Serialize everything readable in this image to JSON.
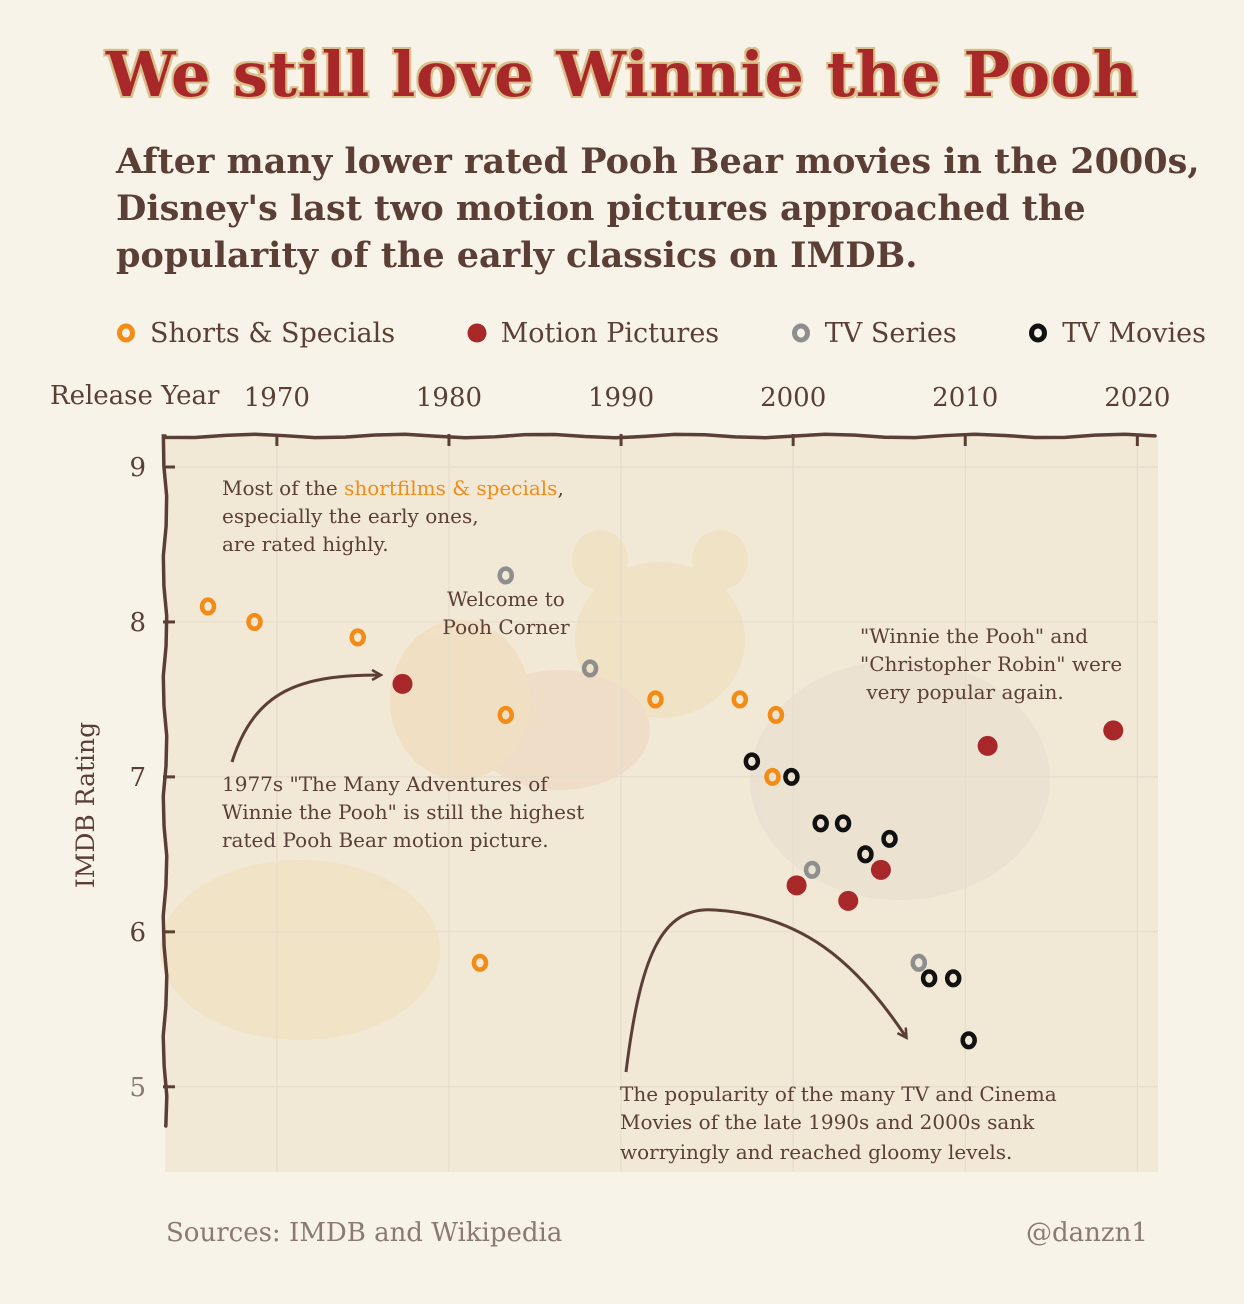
{
  "title": "We still love Winnie the Pooh",
  "subtitle": "After many lower rated Pooh Bear movies in the 2000s, Disney's last two motion pictures approached the popularity of the early classics on IMDB.",
  "legend": [
    {
      "label": "Shorts & Specials",
      "color": "#f28c17",
      "style": "ring"
    },
    {
      "label": "Motion Pictures",
      "color": "#a8282a",
      "style": "filled"
    },
    {
      "label": "TV Series",
      "color": "#8e8e8e",
      "style": "ring"
    },
    {
      "label": "TV Movies",
      "color": "#111111",
      "style": "ring"
    }
  ],
  "footer": {
    "source": "Sources: IMDB and Wikipedia",
    "credit": "@danzn1"
  },
  "annotations": {
    "shorts_prefix": "Most of the ",
    "shorts_highlight": "shortfilms & specials",
    "shorts_suffix": ",",
    "shorts_line2": "especially the early ones,",
    "shorts_line3": "are rated highly.",
    "welcome_line1": "Welcome to",
    "welcome_line2": "Pooh Corner",
    "popular_line1": "\"Winnie the Pooh\" and",
    "popular_line2": "\"Christopher Robin\" were",
    "popular_line3": " very popular again.",
    "classic_line1": "1977s \"The Many Adventures of",
    "classic_line2": "Winnie the Pooh\" is still the highest",
    "classic_line3": "rated Pooh Bear motion picture.",
    "gloomy_line1": "The popularity of the many TV and Cinema",
    "gloomy_line2": "Movies of the late 1990s and 2000s sank",
    "gloomy_line3": "worryingly and reached gloomy levels."
  },
  "chart_data": {
    "type": "scatter",
    "xlabel": "Release Year",
    "ylabel": "IMDB Rating",
    "x_axis_position": "top",
    "xlim": [
      1963.5,
      2021.2
    ],
    "ylim": [
      4.45,
      9.2
    ],
    "xticks": [
      1970,
      1980,
      1990,
      2000,
      2010,
      2020
    ],
    "yticks": [
      5,
      6,
      7,
      8,
      9
    ],
    "grid": true,
    "legend_position": "top",
    "series": [
      {
        "name": "Shorts & Specials",
        "color": "#f28c17",
        "points": [
          [
            1966,
            8.1
          ],
          [
            1968.7,
            8.0
          ],
          [
            1974.7,
            7.9
          ],
          [
            1981.8,
            5.8
          ],
          [
            1983.3,
            7.4
          ],
          [
            1992,
            7.5
          ],
          [
            1996.9,
            7.5
          ],
          [
            1999,
            7.4
          ],
          [
            1998.8,
            7.0
          ]
        ]
      },
      {
        "name": "Motion Pictures",
        "color": "#a8282a",
        "points": [
          [
            1977.3,
            7.6
          ],
          [
            2000.2,
            6.3
          ],
          [
            2003.2,
            6.2
          ],
          [
            2005.1,
            6.4
          ],
          [
            2011.3,
            7.2
          ],
          [
            2018.6,
            7.3
          ]
        ]
      },
      {
        "name": "TV Series",
        "color": "#8e8e8e",
        "points": [
          [
            1983.3,
            8.3
          ],
          [
            1988.2,
            7.7
          ],
          [
            2001.1,
            6.4
          ],
          [
            2007.3,
            5.8
          ]
        ]
      },
      {
        "name": "TV Movies",
        "color": "#111111",
        "points": [
          [
            1997.6,
            7.1
          ],
          [
            1999.9,
            7.0
          ],
          [
            2001.6,
            6.7
          ],
          [
            2002.9,
            6.7
          ],
          [
            2004.2,
            6.5
          ],
          [
            2005.6,
            6.6
          ],
          [
            2007.9,
            5.7
          ],
          [
            2009.3,
            5.7
          ],
          [
            2010.2,
            5.3
          ]
        ]
      }
    ]
  }
}
